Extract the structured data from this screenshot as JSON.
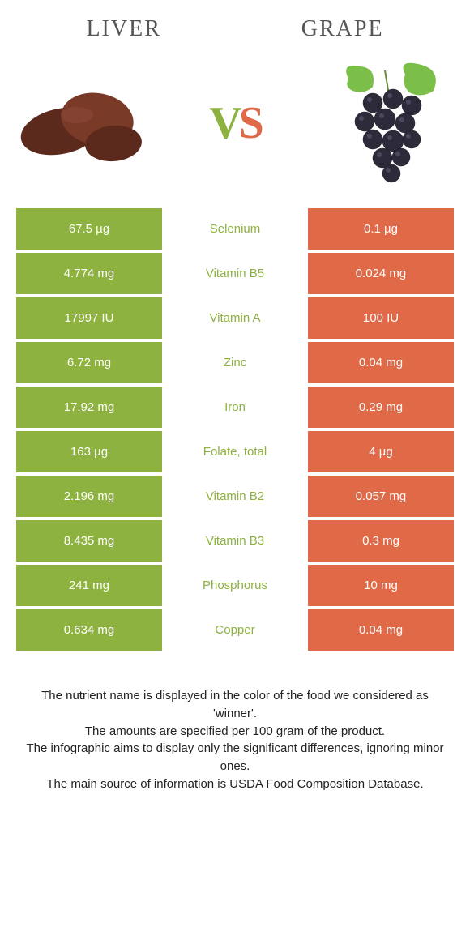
{
  "header": {
    "left_title": "Liver",
    "right_title": "Grape"
  },
  "vs": {
    "v": "V",
    "s": "S"
  },
  "colors": {
    "left": "#8db23f",
    "right": "#e06a48",
    "background": "#ffffff",
    "text": "#333333"
  },
  "comparison": {
    "type": "table",
    "columns": [
      "left_value",
      "nutrient",
      "right_value"
    ],
    "rows": [
      {
        "left": "67.5 µg",
        "name": "Selenium",
        "right": "0.1 µg",
        "winner": "left"
      },
      {
        "left": "4.774 mg",
        "name": "Vitamin B5",
        "right": "0.024 mg",
        "winner": "left"
      },
      {
        "left": "17997 IU",
        "name": "Vitamin A",
        "right": "100 IU",
        "winner": "left"
      },
      {
        "left": "6.72 mg",
        "name": "Zinc",
        "right": "0.04 mg",
        "winner": "left"
      },
      {
        "left": "17.92 mg",
        "name": "Iron",
        "right": "0.29 mg",
        "winner": "left"
      },
      {
        "left": "163 µg",
        "name": "Folate, total",
        "right": "4 µg",
        "winner": "left"
      },
      {
        "left": "2.196 mg",
        "name": "Vitamin B2",
        "right": "0.057 mg",
        "winner": "left"
      },
      {
        "left": "8.435 mg",
        "name": "Vitamin B3",
        "right": "0.3 mg",
        "winner": "left"
      },
      {
        "left": "241 mg",
        "name": "Phosphorus",
        "right": "10 mg",
        "winner": "left"
      },
      {
        "left": "0.634 mg",
        "name": "Copper",
        "right": "0.04 mg",
        "winner": "left"
      }
    ],
    "cell_padding": 17,
    "font_size": 15,
    "winner_colors": {
      "left": "#8db23f",
      "right": "#e06a48"
    }
  },
  "footer": {
    "line1": "The nutrient name is displayed in the color of the food we considered as 'winner'.",
    "line2": "The amounts are specified per 100 gram of the product.",
    "line3": "The infographic aims to display only the significant differences, ignoring minor ones.",
    "line4": "The main source of information is USDA Food Composition Database."
  },
  "typography": {
    "title_font": "Georgia serif",
    "title_size": 28,
    "body_font": "Arial",
    "body_size": 15,
    "vs_size": 56
  }
}
